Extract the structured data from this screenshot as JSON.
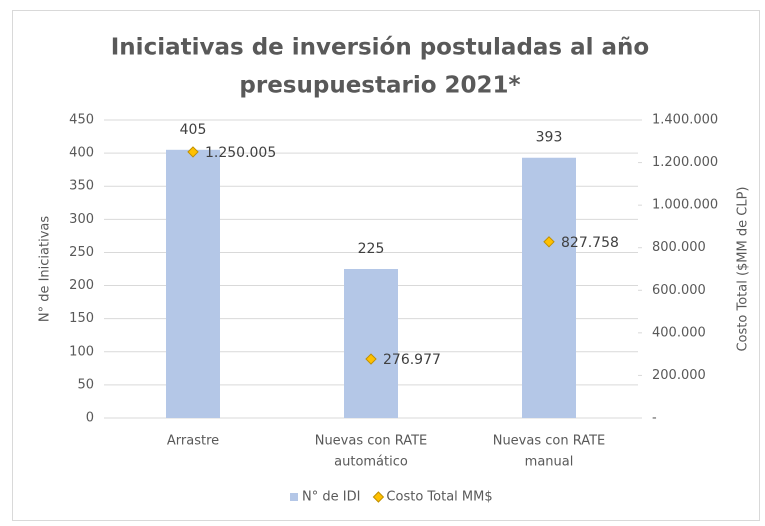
{
  "chart_data": {
    "type": "combo",
    "title": [
      "Iniciativas de inversión postuladas al año",
      "presupuestario 2021*"
    ],
    "categories": [
      [
        "Arrastre"
      ],
      [
        "Nuevas con RATE",
        "automático"
      ],
      [
        "Nuevas con RATE",
        "manual"
      ]
    ],
    "ylabel": "N° de Iniciativas",
    "y2label": "Costo Total ($MM de CLP)",
    "ylim": [
      0,
      450
    ],
    "yticks": [
      0,
      50,
      100,
      150,
      200,
      250,
      300,
      350,
      400,
      450
    ],
    "y2lim": [
      0,
      1400000
    ],
    "y2ticks": [
      {
        "value": 0,
        "label": "-"
      },
      {
        "value": 200000,
        "label": "200.000"
      },
      {
        "value": 400000,
        "label": "400.000"
      },
      {
        "value": 600000,
        "label": "600.000"
      },
      {
        "value": 800000,
        "label": "800.000"
      },
      {
        "value": 1000000,
        "label": "1.000.000"
      },
      {
        "value": 1200000,
        "label": "1.200.000"
      },
      {
        "value": 1400000,
        "label": "1.400.000"
      }
    ],
    "grid": true,
    "legend": "bottom",
    "series": [
      {
        "name": "N° de IDI",
        "type": "bar",
        "color": "#b4c7e7",
        "values": [
          405,
          225,
          393
        ]
      },
      {
        "name": "Costo Total MM$",
        "type": "scatter",
        "axis": "y2",
        "color": "#ffc000",
        "values": [
          1250005,
          276977,
          827758
        ],
        "value_labels": [
          "1.250.005",
          "276.977",
          "827.758"
        ]
      }
    ]
  }
}
